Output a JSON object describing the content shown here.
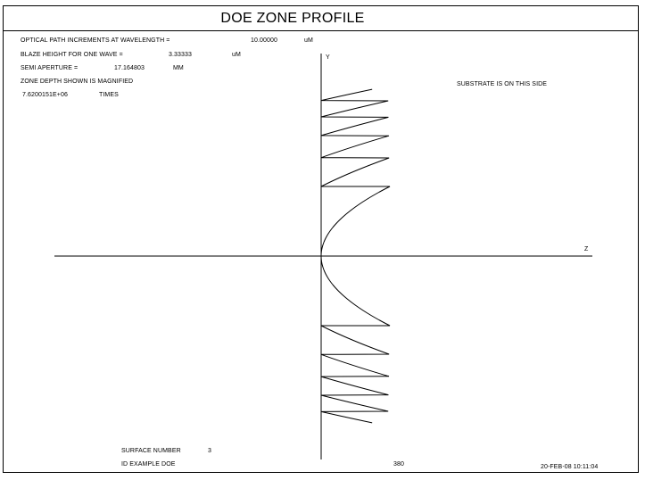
{
  "title": "DOE ZONE PROFILE",
  "info": {
    "opd_label": "OPTICAL PATH INCREMENTS AT WAVELENGTH =",
    "opd_value": "10.00000",
    "opd_unit": "uM",
    "blaze_label": "BLAZE HEIGHT FOR ONE WAVE =",
    "blaze_value": "3.33333",
    "blaze_unit": "uM",
    "semi_label": "SEMI APERTURE =",
    "semi_value": "17.164803",
    "semi_unit": "MM",
    "zone_label": "ZONE DEPTH SHOWN IS MAGNIFIED",
    "mag_value": "7.6200151E+06",
    "mag_unit": "TIMES"
  },
  "substrate_note": "SUBSTRATE IS ON THIS SIDE",
  "axis_y_label": "Y",
  "axis_z_label": "Z",
  "footer": {
    "surface_label": "SURFACE NUMBER",
    "surface_value": "3",
    "id_text": "ID EXAMPLE DOE",
    "page_number": "380",
    "datetime": "20-FEB-08  10:11:04"
  },
  "colors": {
    "line": "#000000",
    "background": "#ffffff"
  }
}
